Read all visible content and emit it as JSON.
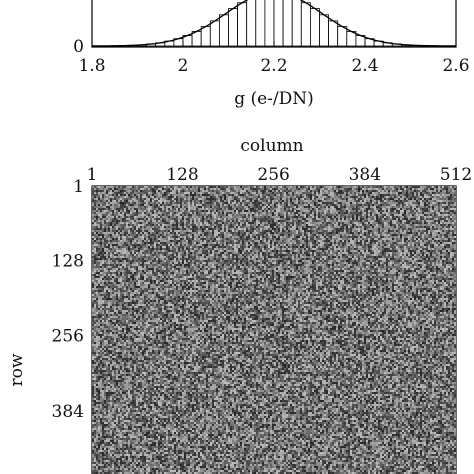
{
  "chart_data": [
    {
      "type": "bar",
      "xlabel": "g (e-/DN)",
      "xlim": [
        1.8,
        2.6
      ],
      "xticks": [
        "1.8",
        "2",
        "2.2",
        "2.4",
        "2.6"
      ],
      "yticks_visible": [
        "0"
      ],
      "bins": {
        "start": 1.8,
        "end": 2.6,
        "count": 40,
        "mean": 2.2,
        "sigma": 0.105
      },
      "fit_curve": "gaussian",
      "colors": {
        "bars": "#000000",
        "fill": "#ffffff"
      }
    },
    {
      "type": "heatmap",
      "title": "column",
      "ylabel": "row",
      "xticks": [
        "1",
        "128",
        "256",
        "384",
        "512"
      ],
      "yticks": [
        "1",
        "128",
        "256",
        "384"
      ],
      "xlim": [
        1,
        512
      ],
      "ylim": [
        1,
        512
      ],
      "colormap": "grayscale",
      "content": "random noise",
      "value_range": [
        0.15,
        0.75
      ]
    }
  ]
}
